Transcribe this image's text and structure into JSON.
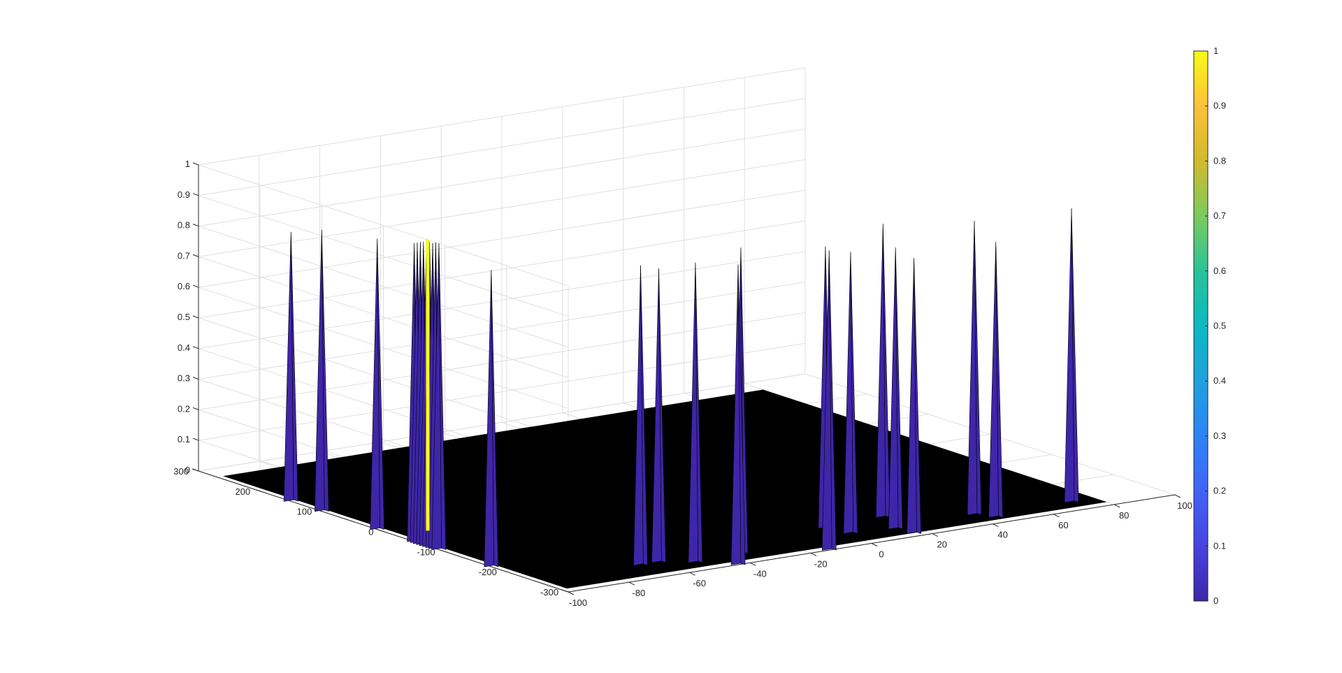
{
  "chart_data": {
    "type": "surface3d",
    "title": "",
    "xlabel": "",
    "ylabel": "",
    "zlabel": "",
    "xlim": [
      -100,
      100
    ],
    "ylim": [
      -300,
      300
    ],
    "zlim": [
      0,
      1
    ],
    "grid": true,
    "x_ticks": [
      "-100",
      "-80",
      "-60",
      "-40",
      "-20",
      "0",
      "20",
      "40",
      "60",
      "80",
      "100"
    ],
    "x_tick_values": [
      -100,
      -80,
      -60,
      -40,
      -20,
      0,
      20,
      40,
      60,
      80,
      100
    ],
    "y_ticks": [
      "-300",
      "-200",
      "-100",
      "0",
      "100",
      "200",
      "300"
    ],
    "y_tick_values": [
      -300,
      -200,
      -100,
      0,
      100,
      200,
      300
    ],
    "z_ticks": [
      "0",
      "0.1",
      "0.2",
      "0.3",
      "0.4",
      "0.5",
      "0.6",
      "0.7",
      "0.8",
      "0.9",
      "1"
    ],
    "z_tick_values": [
      0,
      0.1,
      0.2,
      0.3,
      0.4,
      0.5,
      0.6,
      0.7,
      0.8,
      0.9,
      1
    ],
    "floor_color": "#000000",
    "colormap": "parula",
    "colorbar": {
      "ticks": [
        "0",
        "0.1",
        "0.2",
        "0.3",
        "0.4",
        "0.5",
        "0.6",
        "0.7",
        "0.8",
        "0.9",
        "1"
      ],
      "tick_values": [
        0,
        0.1,
        0.2,
        0.3,
        0.4,
        0.5,
        0.6,
        0.7,
        0.8,
        0.9,
        1
      ],
      "colors": [
        "#3e26a8",
        "#4743e1",
        "#4263f6",
        "#2c84f5",
        "#1fa1dc",
        "#0db9c2",
        "#29c399",
        "#7bcb5d",
        "#d2ba2d",
        "#fbc13a",
        "#f9fb15"
      ]
    },
    "peaks": [
      {
        "x": -100,
        "y": 150,
        "z": 0.88
      },
      {
        "x": -100,
        "y": 100,
        "z": 0.92
      },
      {
        "x": -100,
        "y": 10,
        "z": 0.95
      },
      {
        "x": -100,
        "y": -50,
        "z": 0.975
      },
      {
        "x": -100,
        "y": -55,
        "z": 0.98
      },
      {
        "x": -100,
        "y": -60,
        "z": 0.985
      },
      {
        "x": -100,
        "y": -65,
        "z": 0.99
      },
      {
        "x": -100,
        "y": -70,
        "z": 1.0
      },
      {
        "x": -100,
        "y": -75,
        "z": 0.995
      },
      {
        "x": -100,
        "y": -80,
        "z": 0.995
      },
      {
        "x": -100,
        "y": -85,
        "z": 1.0
      },
      {
        "x": -100,
        "y": -90,
        "z": 1.0
      },
      {
        "x": -100,
        "y": -175,
        "z": 0.97
      },
      {
        "x": -66,
        "y": -250,
        "z": 0.98
      },
      {
        "x": -60,
        "y": -250,
        "z": 0.96
      },
      {
        "x": -52,
        "y": -270,
        "z": 0.98
      },
      {
        "x": -36,
        "y": -265,
        "z": 1.0
      },
      {
        "x": -44,
        "y": -300,
        "z": 0.98
      },
      {
        "x": -14,
        "y": -300,
        "z": 0.98
      },
      {
        "x": 0,
        "y": -225,
        "z": 0.92
      },
      {
        "x": 2,
        "y": -256,
        "z": 0.92
      },
      {
        "x": 15,
        "y": -265,
        "z": 0.92
      },
      {
        "x": 16,
        "y": -290,
        "z": 0.9
      },
      {
        "x": 20,
        "y": -220,
        "z": 0.96
      },
      {
        "x": 42,
        "y": -260,
        "z": 0.96
      },
      {
        "x": 45,
        "y": -280,
        "z": 0.9
      },
      {
        "x": 72,
        "y": -270,
        "z": 0.96
      }
    ]
  }
}
